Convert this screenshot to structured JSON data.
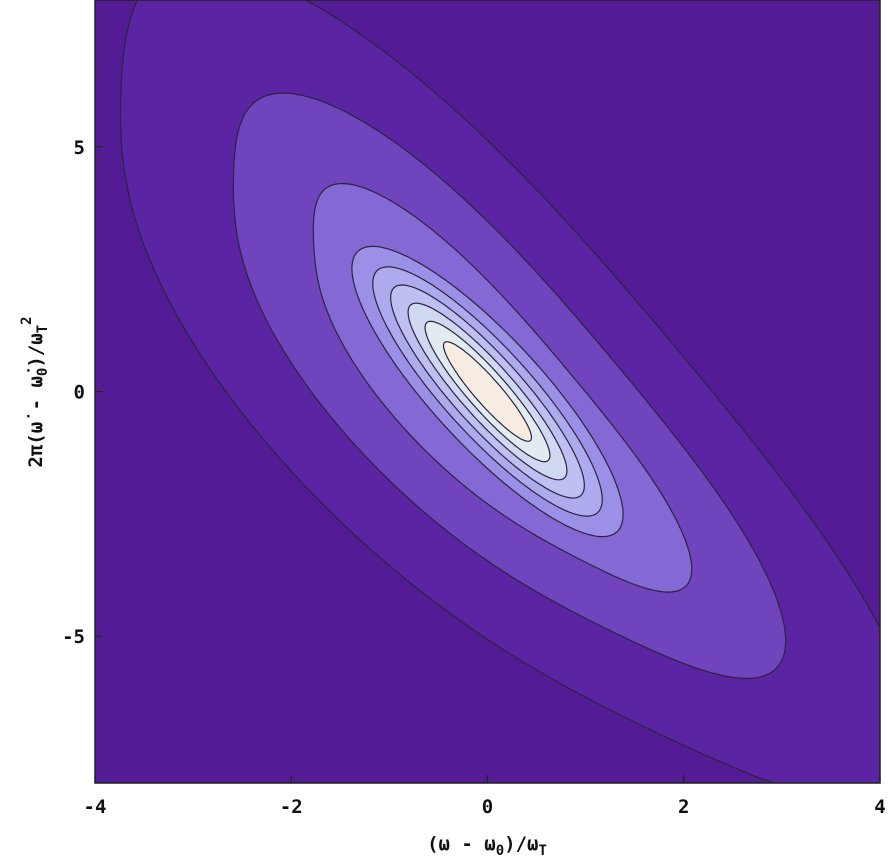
{
  "chart_data": {
    "type": "contour",
    "title": "",
    "xlabel": "(ω − ω₀)/ω_T",
    "ylabel": "2π(ω̇ − ω̇₀)/ω_T²",
    "xlabel_parts": {
      "main": "(ω - ω",
      "sub": "0",
      "tail": ")/ω",
      "sub2": "T"
    },
    "ylabel_parts": {
      "main": "2π(ω̇ - ω̇",
      "sub": "0",
      "tail": ")/ω",
      "sub2": "T",
      "sup": "2"
    },
    "xlim": [
      -4,
      4
    ],
    "ylim": [
      -8,
      8
    ],
    "xticks": [
      {
        "value": -4,
        "label": "-4"
      },
      {
        "value": -2,
        "label": "-2"
      },
      {
        "value": 0,
        "label": "0"
      },
      {
        "value": 2,
        "label": "2"
      },
      {
        "value": 4,
        "label": "4"
      }
    ],
    "yticks": [
      {
        "value": 5,
        "label": "5"
      },
      {
        "value": 0,
        "label": "0"
      },
      {
        "value": -5,
        "label": "-5"
      }
    ],
    "orientation_slope": -2.4,
    "levels": [
      {
        "color": "#5b24a3",
        "half_major": 9.0,
        "half_minor": 2.3
      },
      {
        "color": "#6f44bd",
        "half_major": 6.3,
        "half_minor": 1.55
      },
      {
        "color": "#8468d3",
        "half_major": 4.4,
        "half_minor": 1.0
      },
      {
        "color": "#9b8fe6",
        "half_major": 3.2,
        "half_minor": 0.68
      },
      {
        "color": "#aeaaee",
        "half_major": 2.75,
        "half_minor": 0.54
      },
      {
        "color": "#bfc0f1",
        "half_major": 2.35,
        "half_minor": 0.43
      },
      {
        "color": "#d0d9f1",
        "half_major": 1.95,
        "half_minor": 0.33
      },
      {
        "color": "#e2ebf0",
        "half_major": 1.55,
        "half_minor": 0.24
      },
      {
        "color": "#f6ece2",
        "half_major": 1.1,
        "half_minor": 0.16
      }
    ],
    "colors": {
      "background": "#531c94",
      "outline": "#2a2440"
    },
    "grid": false
  }
}
